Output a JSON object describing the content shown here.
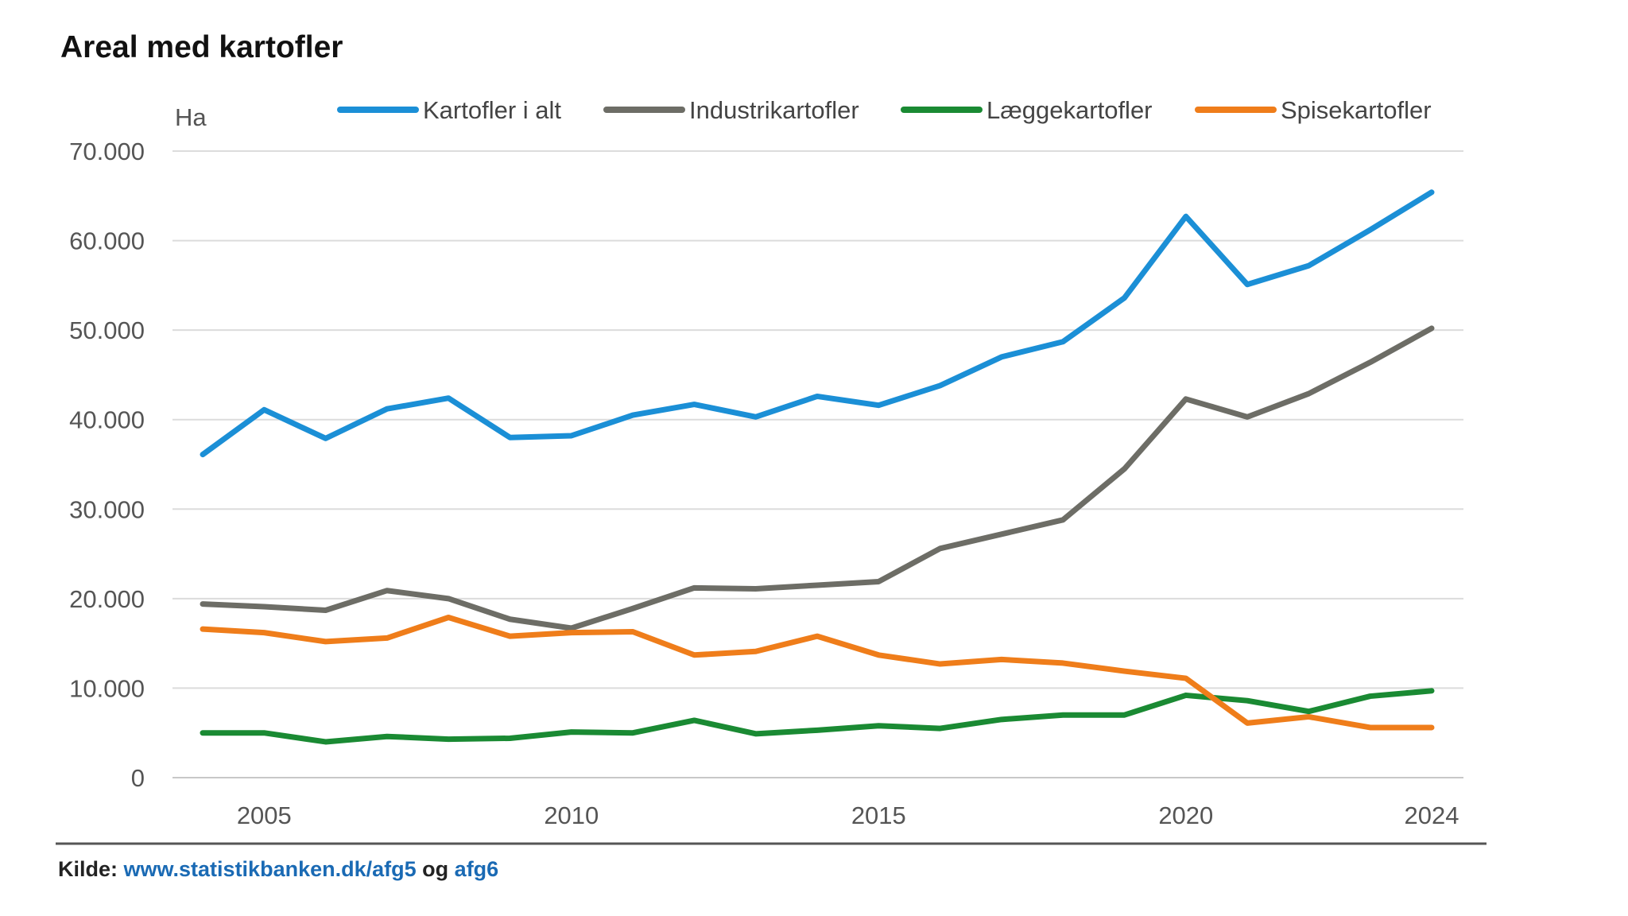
{
  "chart_data": {
    "type": "line",
    "title": "Areal med kartofler",
    "ylabel": "Ha",
    "xlabel": "",
    "ylim": [
      0,
      70000
    ],
    "xlim": [
      2004,
      2024
    ],
    "yticks": [
      0,
      10000,
      20000,
      30000,
      40000,
      50000,
      60000,
      70000
    ],
    "ytick_labels": [
      "0",
      "10.000",
      "20.000",
      "30.000",
      "40.000",
      "50.000",
      "60.000",
      "70.000"
    ],
    "xticks": [
      2005,
      2010,
      2015,
      2020,
      2024
    ],
    "xtick_labels": [
      "2005",
      "2010",
      "2015",
      "2020",
      "2024"
    ],
    "grid": "horizontal",
    "legend_position": "top",
    "x": [
      2004,
      2005,
      2006,
      2007,
      2008,
      2009,
      2010,
      2011,
      2012,
      2013,
      2014,
      2015,
      2016,
      2017,
      2018,
      2019,
      2020,
      2021,
      2022,
      2023,
      2024
    ],
    "series": [
      {
        "name": "Kartofler i alt",
        "color": "#1b8fd6",
        "values": [
          36100,
          41100,
          37900,
          41200,
          42400,
          38000,
          38200,
          40500,
          41700,
          40300,
          42600,
          41600,
          43800,
          47000,
          48700,
          53600,
          62700,
          55100,
          57200,
          61200,
          65400
        ]
      },
      {
        "name": "Industrikartofler",
        "color": "#6d6d66",
        "values": [
          19400,
          19100,
          18700,
          20900,
          20000,
          17700,
          16700,
          18900,
          21200,
          21100,
          21500,
          21900,
          25600,
          27200,
          28800,
          34500,
          42300,
          40300,
          42900,
          46400,
          50200
        ]
      },
      {
        "name": "Læggekartofler",
        "color": "#1a8a33",
        "values": [
          5000,
          5000,
          4000,
          4600,
          4300,
          4400,
          5100,
          5000,
          6400,
          4900,
          5300,
          5800,
          5500,
          6500,
          7000,
          7000,
          9200,
          8600,
          7400,
          9100,
          9700
        ]
      },
      {
        "name": "Spisekartofler",
        "color": "#ef7d1a",
        "values": [
          16600,
          16200,
          15200,
          15600,
          17900,
          15800,
          16200,
          16300,
          13700,
          14100,
          15800,
          13700,
          12700,
          13200,
          12800,
          11900,
          11100,
          6100,
          6800,
          5600,
          5600
        ]
      }
    ]
  },
  "source": {
    "label": "Kilde:",
    "link1": "www.statistikbanken.dk/afg5",
    "joiner": "og",
    "link2": "afg6"
  }
}
